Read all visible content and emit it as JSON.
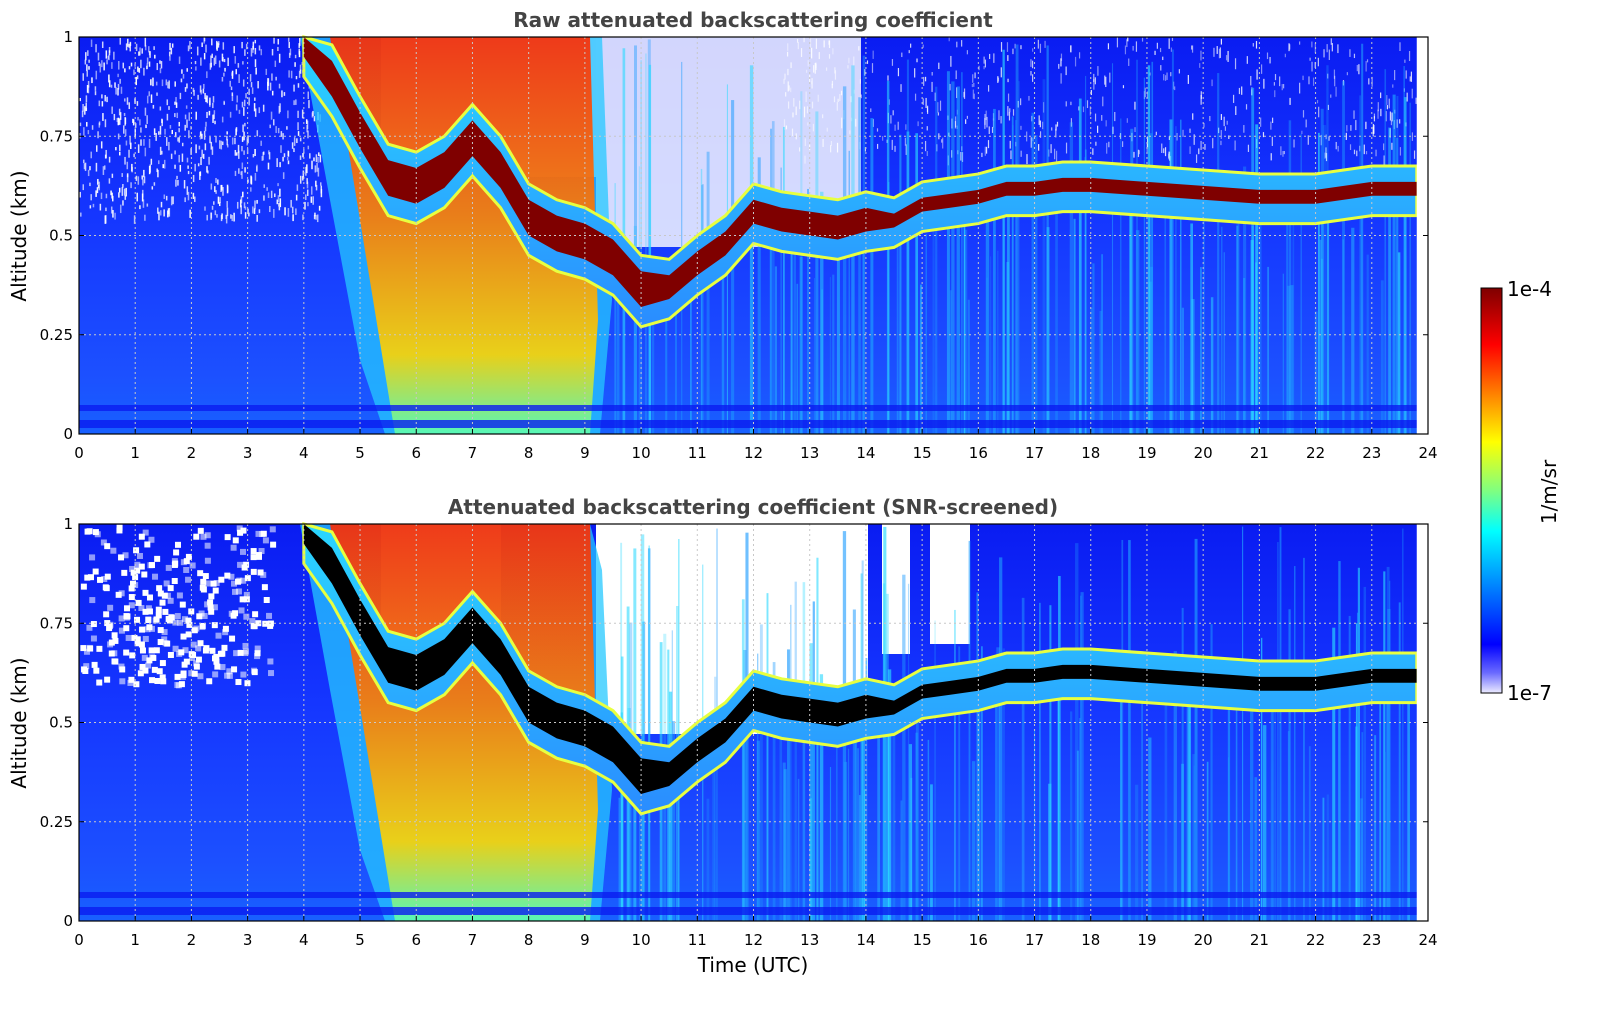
{
  "chart_data": [
    {
      "type": "heatmap",
      "title": "Raw attenuated backscattering coefficient",
      "xlabel": "",
      "ylabel": "Altitude (km)",
      "xlim": [
        0,
        24
      ],
      "ylim": [
        0,
        1
      ],
      "xticks": [
        "0",
        "1",
        "2",
        "3",
        "4",
        "5",
        "6",
        "7",
        "8",
        "9",
        "10",
        "11",
        "12",
        "13",
        "14",
        "15",
        "16",
        "17",
        "18",
        "19",
        "20",
        "21",
        "22",
        "23",
        "24"
      ],
      "yticks": [
        "0",
        "0.25",
        "0.5",
        "0.75",
        "1"
      ],
      "grid": true,
      "color_scale": "jet (log)",
      "data_end_hour": 23.8,
      "cloud_base_km": [
        {
          "x": 3.5,
          "y": 1.0
        },
        {
          "x": 4.0,
          "y": 0.95
        },
        {
          "x": 4.5,
          "y": 0.85
        },
        {
          "x": 5.0,
          "y": 0.72
        },
        {
          "x": 5.5,
          "y": 0.6
        },
        {
          "x": 6.0,
          "y": 0.58
        },
        {
          "x": 6.5,
          "y": 0.62
        },
        {
          "x": 7.0,
          "y": 0.7
        },
        {
          "x": 7.5,
          "y": 0.62
        },
        {
          "x": 8.0,
          "y": 0.5
        },
        {
          "x": 8.5,
          "y": 0.46
        },
        {
          "x": 9.0,
          "y": 0.44
        },
        {
          "x": 9.5,
          "y": 0.4
        },
        {
          "x": 10.0,
          "y": 0.32
        },
        {
          "x": 10.5,
          "y": 0.34
        },
        {
          "x": 11.0,
          "y": 0.4
        },
        {
          "x": 11.5,
          "y": 0.45
        },
        {
          "x": 12.0,
          "y": 0.53
        },
        {
          "x": 12.5,
          "y": 0.51
        },
        {
          "x": 13.0,
          "y": 0.5
        },
        {
          "x": 13.5,
          "y": 0.49
        },
        {
          "x": 14.0,
          "y": 0.51
        },
        {
          "x": 14.5,
          "y": 0.52
        },
        {
          "x": 15.0,
          "y": 0.56
        },
        {
          "x": 15.5,
          "y": 0.57
        },
        {
          "x": 16.0,
          "y": 0.58
        },
        {
          "x": 16.5,
          "y": 0.6
        },
        {
          "x": 17.0,
          "y": 0.6
        },
        {
          "x": 17.5,
          "y": 0.61
        },
        {
          "x": 18.0,
          "y": 0.61
        },
        {
          "x": 19.0,
          "y": 0.6
        },
        {
          "x": 20.0,
          "y": 0.59
        },
        {
          "x": 21.0,
          "y": 0.58
        },
        {
          "x": 22.0,
          "y": 0.58
        },
        {
          "x": 23.0,
          "y": 0.6
        },
        {
          "x": 23.8,
          "y": 0.6
        }
      ],
      "fog_to_surface_hours": [
        5.5,
        9.3
      ]
    },
    {
      "type": "heatmap",
      "title": "Attenuated backscattering coefficient (SNR-screened)",
      "xlabel": "Time (UTC)",
      "ylabel": "Altitude (km)",
      "xlim": [
        0,
        24
      ],
      "ylim": [
        0,
        1
      ],
      "xticks": [
        "0",
        "1",
        "2",
        "3",
        "4",
        "5",
        "6",
        "7",
        "8",
        "9",
        "10",
        "11",
        "12",
        "13",
        "14",
        "15",
        "16",
        "17",
        "18",
        "19",
        "20",
        "21",
        "22",
        "23",
        "24"
      ],
      "yticks": [
        "0",
        "0.25",
        "0.5",
        "0.75",
        "1"
      ],
      "grid": true,
      "color_scale": "jet (log), saturated values shown black",
      "data_end_hour": 23.8
    }
  ],
  "colorbar": {
    "label": "1/m/sr",
    "max_label": "1e-4",
    "min_label": "1e-7",
    "stops": [
      "#7f0000",
      "#ff0000",
      "#ff8000",
      "#ffff00",
      "#80ff80",
      "#00ffff",
      "#0080ff",
      "#0000ff",
      "#e8e8ff"
    ]
  },
  "colors": {
    "background_blue": "#1c4fff",
    "upper_blue": "#0b1ef0",
    "cloud_core": "#7f0000",
    "saturated": "#000000",
    "title_text": "#444444"
  }
}
